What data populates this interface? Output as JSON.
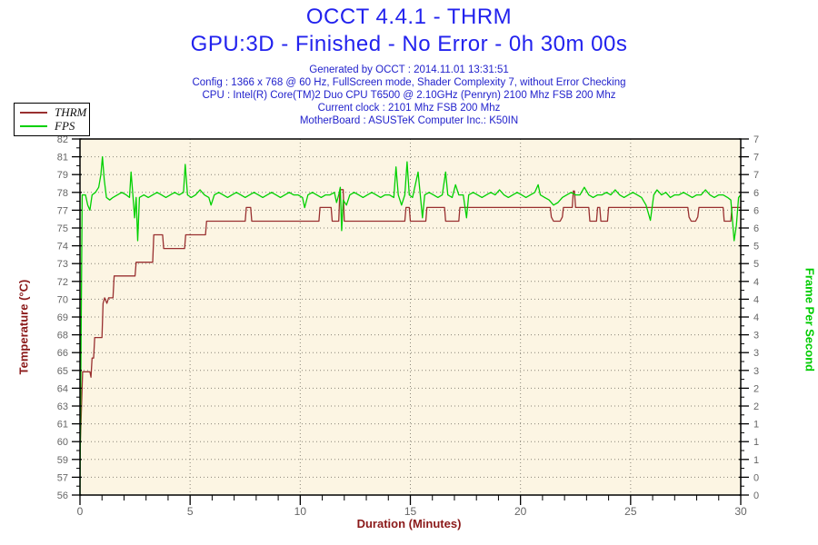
{
  "header": {
    "title": "OCCT 4.4.1 - THRM",
    "subtitle": "GPU:3D - Finished - No Error - 0h 30m 00s",
    "info_lines": [
      "Generated by OCCT : 2014.11.01 13:31:51",
      "Config : 1366 x 768 @ 60 Hz, FullScreen mode, Shader Complexity 7, without Error Checking",
      "CPU : Intel(R) Core(TM)2 Duo CPU T6500 @ 2.10GHz (Penryn) 2100 Mhz FSB 200 Mhz",
      "Current clock : 2101 Mhz FSB 200 Mhz",
      "MotherBoard : ASUSTeK Computer Inc.: K50IN"
    ]
  },
  "legend": {
    "items": [
      {
        "label": "THRM",
        "color": "#993030"
      },
      {
        "label": "FPS",
        "color": "#00d000"
      }
    ]
  },
  "colors": {
    "title_blue": "#2222ee",
    "info_blue": "#2222cc",
    "thrm_red": "#993030",
    "temp_title_red": "#8b1a1a",
    "fps_green": "#00d000",
    "fps_title_green": "#00cc00",
    "plot_bg": "#fcf5e3",
    "grid_dot": "#8a8578",
    "tick_label_gray": "#666666",
    "axis_black": "#000000"
  },
  "chart_data": {
    "type": "line",
    "title": "OCCT 4.4.1 - THRM",
    "xlabel": "Duration (Minutes)",
    "ylabel_left": "Temperature (°C)",
    "ylabel_right": "Frame Per Second",
    "plot_bg": "#fcf5e3",
    "grid": {
      "style": "dotted",
      "horizontal_rows": 21
    },
    "x_axis": {
      "title": "Duration (Minutes)",
      "range": [
        0,
        30
      ],
      "labels": [
        "0",
        "5",
        "10",
        "15",
        "20",
        "25",
        "30"
      ],
      "major_tick_interval": 5,
      "minor_tick_interval": 1,
      "gridline_minutes": [
        5,
        10,
        15,
        20,
        25
      ]
    },
    "left_axis": {
      "title": "Temperature (°C)",
      "range": [
        56,
        82
      ],
      "labels_top_to_bottom": [
        "82",
        "81",
        "79",
        "78",
        "77",
        "75",
        "74",
        "73",
        "72",
        "70",
        "69",
        "68",
        "66",
        "65",
        "64",
        "63",
        "61",
        "60",
        "59",
        "57",
        "56"
      ]
    },
    "right_axis": {
      "title": "Frame Per Second",
      "range": [
        0,
        7
      ],
      "labels_top_to_bottom": [
        "7",
        "7",
        "7",
        "6",
        "6",
        "6",
        "5",
        "5",
        "4",
        "4",
        "4",
        "3",
        "3",
        "3",
        "2",
        "2",
        "1",
        "1",
        "1",
        "0",
        "0"
      ]
    },
    "series": [
      {
        "name": "THRM",
        "axis": "left_axis",
        "color": "#993030",
        "points": [
          [
            0,
            59
          ],
          [
            0.12,
            65
          ],
          [
            0.45,
            65
          ],
          [
            0.5,
            64.6
          ],
          [
            0.55,
            66
          ],
          [
            0.62,
            66
          ],
          [
            0.67,
            67.5
          ],
          [
            1.0,
            67.5
          ],
          [
            1.05,
            70
          ],
          [
            1.12,
            70.4
          ],
          [
            1.22,
            70
          ],
          [
            1.3,
            70.4
          ],
          [
            1.5,
            70.4
          ],
          [
            1.55,
            72
          ],
          [
            2.5,
            72
          ],
          [
            2.55,
            73
          ],
          [
            3.3,
            73
          ],
          [
            3.35,
            75
          ],
          [
            3.75,
            75
          ],
          [
            3.8,
            74
          ],
          [
            4.75,
            74
          ],
          [
            4.8,
            75
          ],
          [
            5.7,
            75
          ],
          [
            5.75,
            76
          ],
          [
            7.5,
            76
          ],
          [
            7.55,
            77
          ],
          [
            7.75,
            77
          ],
          [
            7.8,
            76
          ],
          [
            10.85,
            76
          ],
          [
            10.9,
            77
          ],
          [
            11.4,
            77
          ],
          [
            11.45,
            76
          ],
          [
            11.75,
            76
          ],
          [
            11.8,
            78.3
          ],
          [
            11.95,
            78.3
          ],
          [
            12.0,
            76
          ],
          [
            14.75,
            76
          ],
          [
            14.8,
            77
          ],
          [
            14.95,
            77
          ],
          [
            15.0,
            76
          ],
          [
            15.7,
            76
          ],
          [
            15.75,
            77
          ],
          [
            16.55,
            77
          ],
          [
            16.6,
            76
          ],
          [
            17.2,
            76
          ],
          [
            17.25,
            77
          ],
          [
            21.35,
            77
          ],
          [
            21.4,
            76.3
          ],
          [
            21.5,
            76
          ],
          [
            21.8,
            76
          ],
          [
            21.9,
            76.3
          ],
          [
            21.95,
            77
          ],
          [
            22.35,
            77
          ],
          [
            22.4,
            78.2
          ],
          [
            22.45,
            78.2
          ],
          [
            22.5,
            77
          ],
          [
            23.1,
            77
          ],
          [
            23.15,
            76
          ],
          [
            23.45,
            76
          ],
          [
            23.5,
            77
          ],
          [
            23.6,
            77
          ],
          [
            23.65,
            76
          ],
          [
            23.95,
            76
          ],
          [
            24.0,
            77
          ],
          [
            27.6,
            77
          ],
          [
            27.65,
            76.3
          ],
          [
            27.75,
            76
          ],
          [
            27.95,
            76
          ],
          [
            28.05,
            76.3
          ],
          [
            28.1,
            77
          ],
          [
            29.2,
            77
          ],
          [
            29.25,
            76
          ],
          [
            29.55,
            76
          ],
          [
            29.6,
            77
          ],
          [
            30,
            77
          ]
        ]
      },
      {
        "name": "FPS",
        "axis": "right_axis",
        "color": "#00d000",
        "points": [
          [
            0,
            0
          ],
          [
            0.05,
            3.0
          ],
          [
            0.1,
            5.9
          ],
          [
            0.25,
            5.9
          ],
          [
            0.35,
            5.7
          ],
          [
            0.45,
            5.6
          ],
          [
            0.55,
            5.9
          ],
          [
            0.7,
            5.95
          ],
          [
            0.85,
            6.05
          ],
          [
            0.95,
            6.3
          ],
          [
            1.02,
            6.65
          ],
          [
            1.1,
            6.2
          ],
          [
            1.2,
            5.85
          ],
          [
            1.35,
            5.8
          ],
          [
            1.5,
            5.85
          ],
          [
            1.7,
            5.9
          ],
          [
            1.9,
            5.95
          ],
          [
            2.1,
            5.9
          ],
          [
            2.25,
            5.85
          ],
          [
            2.32,
            6.35
          ],
          [
            2.4,
            5.9
          ],
          [
            2.48,
            5.45
          ],
          [
            2.55,
            5.85
          ],
          [
            2.62,
            5.0
          ],
          [
            2.7,
            5.85
          ],
          [
            2.9,
            5.9
          ],
          [
            3.1,
            5.85
          ],
          [
            3.3,
            5.9
          ],
          [
            3.5,
            5.95
          ],
          [
            3.7,
            5.9
          ],
          [
            3.9,
            5.85
          ],
          [
            4.1,
            5.9
          ],
          [
            4.3,
            5.95
          ],
          [
            4.5,
            5.9
          ],
          [
            4.7,
            5.95
          ],
          [
            4.78,
            6.5
          ],
          [
            4.88,
            5.9
          ],
          [
            5.05,
            5.85
          ],
          [
            5.25,
            5.9
          ],
          [
            5.45,
            6.0
          ],
          [
            5.65,
            5.9
          ],
          [
            5.85,
            5.85
          ],
          [
            5.95,
            5.7
          ],
          [
            6.1,
            5.9
          ],
          [
            6.3,
            5.95
          ],
          [
            6.5,
            5.9
          ],
          [
            6.7,
            5.85
          ],
          [
            6.9,
            5.9
          ],
          [
            7.1,
            5.95
          ],
          [
            7.3,
            5.9
          ],
          [
            7.5,
            5.85
          ],
          [
            7.7,
            5.9
          ],
          [
            7.9,
            5.95
          ],
          [
            8.1,
            5.9
          ],
          [
            8.3,
            5.85
          ],
          [
            8.5,
            5.9
          ],
          [
            8.7,
            5.95
          ],
          [
            8.9,
            5.9
          ],
          [
            9.1,
            5.85
          ],
          [
            9.3,
            5.9
          ],
          [
            9.5,
            5.95
          ],
          [
            9.7,
            5.9
          ],
          [
            9.9,
            5.9
          ],
          [
            10.1,
            5.85
          ],
          [
            10.2,
            5.65
          ],
          [
            10.35,
            5.9
          ],
          [
            10.55,
            5.95
          ],
          [
            10.75,
            5.9
          ],
          [
            10.95,
            5.85
          ],
          [
            11.15,
            5.9
          ],
          [
            11.35,
            5.9
          ],
          [
            11.55,
            5.95
          ],
          [
            11.65,
            5.75
          ],
          [
            11.75,
            5.9
          ],
          [
            11.82,
            6.05
          ],
          [
            11.88,
            5.2
          ],
          [
            11.95,
            5.8
          ],
          [
            12.1,
            5.7
          ],
          [
            12.25,
            5.9
          ],
          [
            12.45,
            5.95
          ],
          [
            12.65,
            5.9
          ],
          [
            12.85,
            5.85
          ],
          [
            13.05,
            5.9
          ],
          [
            13.25,
            5.95
          ],
          [
            13.45,
            5.9
          ],
          [
            13.65,
            5.85
          ],
          [
            13.85,
            5.9
          ],
          [
            14.05,
            5.9
          ],
          [
            14.25,
            5.85
          ],
          [
            14.35,
            6.45
          ],
          [
            14.45,
            5.9
          ],
          [
            14.6,
            5.7
          ],
          [
            14.75,
            5.9
          ],
          [
            14.85,
            6.55
          ],
          [
            14.95,
            5.9
          ],
          [
            15.1,
            5.85
          ],
          [
            15.35,
            6.35
          ],
          [
            15.45,
            5.9
          ],
          [
            15.55,
            5.45
          ],
          [
            15.65,
            5.9
          ],
          [
            15.85,
            5.95
          ],
          [
            16.05,
            5.9
          ],
          [
            16.25,
            5.85
          ],
          [
            16.45,
            5.9
          ],
          [
            16.6,
            6.35
          ],
          [
            16.7,
            5.9
          ],
          [
            16.9,
            5.85
          ],
          [
            17.05,
            6.1
          ],
          [
            17.2,
            5.9
          ],
          [
            17.4,
            5.9
          ],
          [
            17.55,
            5.45
          ],
          [
            17.65,
            5.9
          ],
          [
            17.85,
            5.95
          ],
          [
            18.05,
            5.9
          ],
          [
            18.25,
            5.85
          ],
          [
            18.45,
            5.9
          ],
          [
            18.65,
            5.95
          ],
          [
            18.85,
            5.9
          ],
          [
            19.05,
            6.0
          ],
          [
            19.25,
            5.9
          ],
          [
            19.45,
            5.85
          ],
          [
            19.65,
            5.9
          ],
          [
            19.85,
            5.95
          ],
          [
            20.05,
            5.9
          ],
          [
            20.25,
            5.85
          ],
          [
            20.45,
            5.9
          ],
          [
            20.65,
            5.95
          ],
          [
            20.8,
            6.1
          ],
          [
            20.9,
            5.9
          ],
          [
            21.1,
            5.85
          ],
          [
            21.3,
            5.8
          ],
          [
            21.5,
            5.7
          ],
          [
            21.7,
            5.75
          ],
          [
            21.9,
            5.85
          ],
          [
            22.1,
            5.9
          ],
          [
            22.3,
            5.95
          ],
          [
            22.5,
            5.9
          ],
          [
            22.7,
            5.9
          ],
          [
            22.9,
            6.05
          ],
          [
            23.1,
            5.9
          ],
          [
            23.3,
            5.85
          ],
          [
            23.5,
            5.9
          ],
          [
            23.7,
            5.9
          ],
          [
            23.9,
            5.95
          ],
          [
            24.1,
            5.9
          ],
          [
            24.3,
            6.0
          ],
          [
            24.5,
            5.9
          ],
          [
            24.7,
            5.85
          ],
          [
            24.9,
            5.9
          ],
          [
            25.1,
            5.95
          ],
          [
            25.3,
            5.9
          ],
          [
            25.5,
            5.85
          ],
          [
            25.7,
            5.7
          ],
          [
            25.9,
            5.4
          ],
          [
            26.05,
            5.9
          ],
          [
            26.2,
            6.0
          ],
          [
            26.4,
            5.9
          ],
          [
            26.6,
            5.95
          ],
          [
            26.8,
            5.85
          ],
          [
            27.0,
            5.9
          ],
          [
            27.2,
            5.9
          ],
          [
            27.4,
            5.95
          ],
          [
            27.6,
            5.9
          ],
          [
            27.8,
            5.85
          ],
          [
            28.0,
            5.9
          ],
          [
            28.2,
            5.9
          ],
          [
            28.4,
            6.0
          ],
          [
            28.6,
            5.9
          ],
          [
            28.8,
            5.85
          ],
          [
            29.0,
            5.9
          ],
          [
            29.2,
            5.9
          ],
          [
            29.4,
            5.85
          ],
          [
            29.55,
            5.8
          ],
          [
            29.7,
            5.0
          ],
          [
            29.8,
            5.3
          ],
          [
            29.9,
            5.85
          ],
          [
            30,
            5.9
          ]
        ]
      }
    ]
  }
}
